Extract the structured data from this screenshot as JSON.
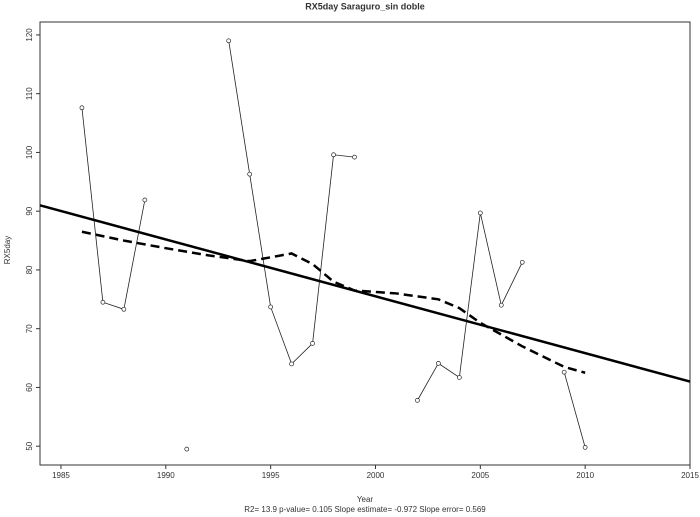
{
  "chart_data": {
    "type": "line",
    "title": "RX5day   Saraguro_sin doble",
    "x_label": "Year",
    "y_label": "RX5day",
    "footer": "R2= 13.9  p-value= 0.105  Slope estimate= -0.972  Slope error= 0.569",
    "x": [
      1986,
      1987,
      1988,
      1989,
      1990,
      1991,
      1992,
      1993,
      1994,
      1995,
      1996,
      1997,
      1998,
      1999,
      2000,
      2001,
      2002,
      2003,
      2004,
      2005,
      2006,
      2007,
      2008,
      2009,
      2010
    ],
    "values": [
      107.6,
      74.5,
      73.3,
      91.9,
      null,
      49.5,
      null,
      119,
      96.3,
      73.7,
      64,
      67.5,
      99.6,
      99.2,
      null,
      null,
      57.8,
      64.1,
      61.7,
      89.7,
      74,
      81.3,
      null,
      62.6,
      49.8
    ],
    "color": "#222222",
    "fits": [
      {
        "x": [
          1984,
          2015
        ],
        "values": [
          91,
          61
        ],
        "dash": false,
        "color": "#000000"
      },
      {
        "x": [
          1986,
          1988,
          1990,
          1992,
          1994,
          1996,
          1997,
          1998,
          1999,
          2001,
          2003,
          2004,
          2005,
          2007,
          2009,
          2010
        ],
        "values": [
          86.5,
          85,
          83.7,
          82.5,
          81.5,
          82.8,
          81,
          78,
          76.5,
          76,
          75,
          73.5,
          71,
          67,
          63.5,
          62.5
        ],
        "dash": true,
        "color": "#000000"
      }
    ],
    "xlim": [
      1984,
      2015
    ],
    "ylim": [
      46.8,
      122.2
    ],
    "xticks": [
      1985,
      1990,
      1995,
      2000,
      2005,
      2010,
      2015
    ],
    "yticks": [
      50,
      60,
      70,
      80,
      90,
      100,
      110,
      120
    ]
  }
}
